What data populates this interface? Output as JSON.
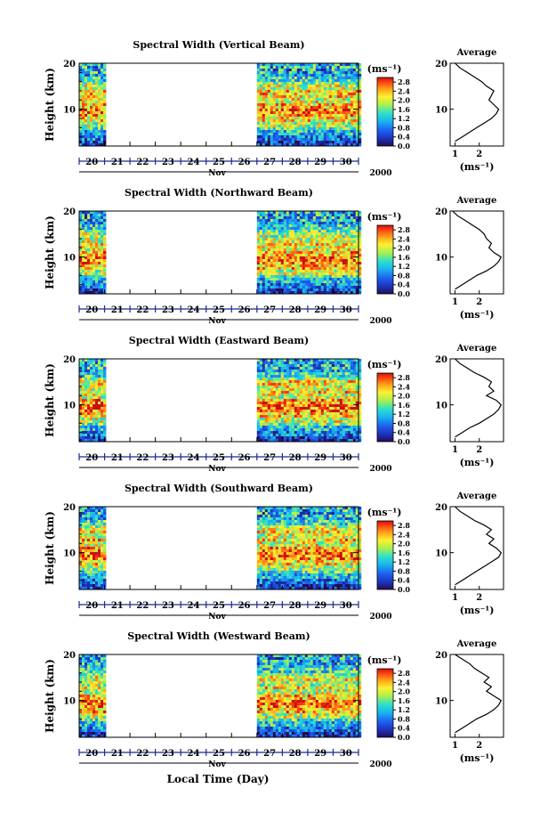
{
  "figure": {
    "xlabel": "Local Time (Day)",
    "month": "Nov",
    "year": "2000"
  },
  "chart_data": [
    {
      "type": "heatmap",
      "title": "Spectral Width (Vertical Beam)",
      "ylabel": "Height (km)",
      "xlabel": "Local Time (Day)",
      "x_tick_labels": [
        "20",
        "21",
        "22",
        "23",
        "24",
        "25",
        "26",
        "27",
        "28",
        "29",
        "30"
      ],
      "y_tick_labels": [
        "10",
        "20"
      ],
      "ylim": [
        2,
        20
      ],
      "data_intervals": [
        [
          "20",
          "21"
        ],
        [
          "27",
          "31"
        ]
      ],
      "colorbar": {
        "unit": "(ms⁻¹)",
        "ticks": [
          "0.0",
          "0.4",
          "0.8",
          "1.2",
          "1.6",
          "2.0",
          "2.4",
          "2.8"
        ],
        "range": [
          0,
          3.0
        ]
      },
      "average_profile": {
        "title": "Average",
        "xlabel": "(ms⁻¹)",
        "x_tick_labels": [
          "1",
          "2"
        ],
        "xlim": [
          0.8,
          3.0
        ],
        "height": [
          3,
          4,
          5,
          6,
          7,
          8,
          9,
          10,
          11,
          12,
          13,
          14,
          15,
          16,
          17,
          18,
          19,
          20
        ],
        "width": [
          1.0,
          1.3,
          1.6,
          1.9,
          2.2,
          2.5,
          2.7,
          2.8,
          2.6,
          2.4,
          2.5,
          2.6,
          2.3,
          2.1,
          1.8,
          1.5,
          1.2,
          1.0
        ]
      }
    },
    {
      "type": "heatmap",
      "title": "Spectral Width (Northward Beam)",
      "ylabel": "Height (km)",
      "xlabel": "Local Time (Day)",
      "x_tick_labels": [
        "20",
        "21",
        "22",
        "23",
        "24",
        "25",
        "26",
        "27",
        "28",
        "29",
        "30"
      ],
      "y_tick_labels": [
        "10",
        "20"
      ],
      "ylim": [
        2,
        20
      ],
      "data_intervals": [
        [
          "20",
          "21"
        ],
        [
          "27",
          "31"
        ]
      ],
      "colorbar": {
        "unit": "(ms⁻¹)",
        "ticks": [
          "0.0",
          "0.4",
          "0.8",
          "1.2",
          "1.6",
          "2.0",
          "2.4",
          "2.8"
        ],
        "range": [
          0,
          3.0
        ]
      },
      "average_profile": {
        "title": "Average",
        "xlabel": "(ms⁻¹)",
        "x_tick_labels": [
          "1",
          "2"
        ],
        "xlim": [
          0.8,
          3.0
        ],
        "height": [
          3,
          4,
          5,
          6,
          7,
          8,
          9,
          10,
          11,
          12,
          13,
          14,
          15,
          16,
          17,
          18,
          19,
          20
        ],
        "width": [
          1.0,
          1.3,
          1.6,
          1.9,
          2.3,
          2.6,
          2.8,
          2.9,
          2.6,
          2.4,
          2.5,
          2.3,
          2.2,
          2.0,
          1.7,
          1.4,
          1.1,
          0.9
        ]
      }
    },
    {
      "type": "heatmap",
      "title": "Spectral Width (Eastward Beam)",
      "ylabel": "Height (km)",
      "xlabel": "Local Time (Day)",
      "x_tick_labels": [
        "20",
        "21",
        "22",
        "23",
        "24",
        "25",
        "26",
        "27",
        "28",
        "29",
        "30"
      ],
      "y_tick_labels": [
        "10",
        "20"
      ],
      "ylim": [
        2,
        20
      ],
      "data_intervals": [
        [
          "20",
          "21"
        ],
        [
          "27",
          "31"
        ]
      ],
      "colorbar": {
        "unit": "(ms⁻¹)",
        "ticks": [
          "0.0",
          "0.4",
          "0.8",
          "1.2",
          "1.6",
          "2.0",
          "2.4",
          "2.8"
        ],
        "range": [
          0,
          3.0
        ]
      },
      "average_profile": {
        "title": "Average",
        "xlabel": "(ms⁻¹)",
        "x_tick_labels": [
          "1",
          "2"
        ],
        "xlim": [
          0.8,
          3.0
        ],
        "height": [
          3,
          4,
          5,
          6,
          7,
          8,
          9,
          10,
          11,
          12,
          13,
          14,
          15,
          16,
          17,
          18,
          19,
          20
        ],
        "width": [
          1.0,
          1.3,
          1.6,
          2.0,
          2.3,
          2.6,
          2.8,
          2.9,
          2.7,
          2.3,
          2.6,
          2.4,
          2.5,
          2.2,
          1.8,
          1.5,
          1.2,
          1.0
        ]
      }
    },
    {
      "type": "heatmap",
      "title": "Spectral Width (Southward Beam)",
      "ylabel": "Height (km)",
      "xlabel": "Local Time (Day)",
      "x_tick_labels": [
        "20",
        "21",
        "22",
        "23",
        "24",
        "25",
        "26",
        "27",
        "28",
        "29",
        "30"
      ],
      "y_tick_labels": [
        "10",
        "20"
      ],
      "ylim": [
        2,
        20
      ],
      "data_intervals": [
        [
          "20",
          "21"
        ],
        [
          "27",
          "31"
        ]
      ],
      "colorbar": {
        "unit": "(ms⁻¹)",
        "ticks": [
          "0.0",
          "0.4",
          "0.8",
          "1.2",
          "1.6",
          "2.0",
          "2.4",
          "2.8"
        ],
        "range": [
          0,
          3.0
        ]
      },
      "average_profile": {
        "title": "Average",
        "xlabel": "(ms⁻¹)",
        "x_tick_labels": [
          "1",
          "2"
        ],
        "xlim": [
          0.8,
          3.0
        ],
        "height": [
          3,
          4,
          5,
          6,
          7,
          8,
          9,
          10,
          11,
          12,
          13,
          14,
          15,
          16,
          17,
          18,
          19,
          20
        ],
        "width": [
          1.0,
          1.3,
          1.6,
          1.9,
          2.2,
          2.5,
          2.8,
          2.9,
          2.7,
          2.4,
          2.6,
          2.3,
          2.5,
          2.2,
          1.8,
          1.5,
          1.2,
          1.0
        ]
      }
    },
    {
      "type": "heatmap",
      "title": "Spectral Width (Westward Beam)",
      "ylabel": "Height (km)",
      "xlabel": "Local Time (Day)",
      "x_tick_labels": [
        "20",
        "21",
        "22",
        "23",
        "24",
        "25",
        "26",
        "27",
        "28",
        "29",
        "30"
      ],
      "y_tick_labels": [
        "10",
        "20"
      ],
      "ylim": [
        2,
        20
      ],
      "data_intervals": [
        [
          "20",
          "21"
        ],
        [
          "27",
          "31"
        ]
      ],
      "colorbar": {
        "unit": "(ms⁻¹)",
        "ticks": [
          "0.0",
          "0.4",
          "0.8",
          "1.2",
          "1.6",
          "2.0",
          "2.4",
          "2.8"
        ],
        "range": [
          0,
          3.0
        ]
      },
      "average_profile": {
        "title": "Average",
        "xlabel": "(ms⁻¹)",
        "x_tick_labels": [
          "1",
          "2"
        ],
        "xlim": [
          0.8,
          3.0
        ],
        "height": [
          3,
          4,
          5,
          6,
          7,
          8,
          9,
          10,
          11,
          12,
          13,
          14,
          15,
          16,
          17,
          18,
          19,
          20
        ],
        "width": [
          1.0,
          1.3,
          1.6,
          1.9,
          2.3,
          2.6,
          2.8,
          2.9,
          2.6,
          2.3,
          2.5,
          2.2,
          2.4,
          2.1,
          1.8,
          1.6,
          1.3,
          1.0
        ]
      }
    }
  ]
}
